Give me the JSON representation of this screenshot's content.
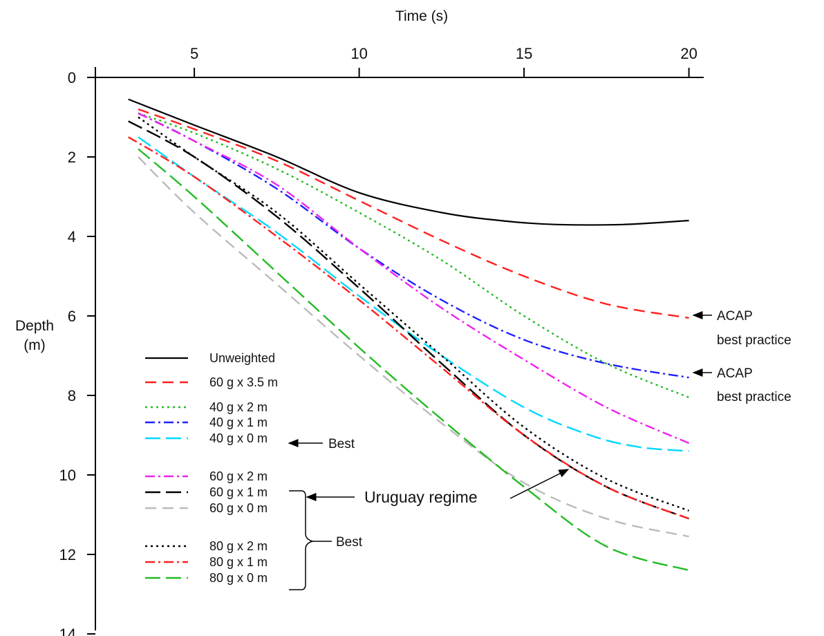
{
  "chart_data": {
    "type": "line",
    "title": "",
    "xlabel": "Time (s)",
    "ylabel_line1": "Depth",
    "ylabel_line2": "(m)",
    "xlim": [
      2,
      21
    ],
    "ylim": [
      0,
      14
    ],
    "y_inverted": true,
    "x_axis_position": "top",
    "xticks": [
      5,
      10,
      15,
      20
    ],
    "yticks": [
      0,
      2,
      4,
      6,
      8,
      10,
      12,
      14
    ],
    "grid": false,
    "legend_position": "lower-left",
    "series": [
      {
        "name": "Unweighted",
        "color": "#000000",
        "dash": "solid",
        "x": [
          3,
          5,
          7.5,
          10,
          12.5,
          14.5,
          16,
          18,
          20
        ],
        "y": [
          0.55,
          1.2,
          2.0,
          2.9,
          3.4,
          3.62,
          3.7,
          3.7,
          3.6
        ]
      },
      {
        "name": "60 g x 3.5 m",
        "color": "#ff2020",
        "dash": "dash",
        "x": [
          3.3,
          5,
          7.5,
          10,
          12.5,
          15,
          17.5,
          20
        ],
        "y": [
          0.8,
          1.3,
          2.1,
          3.1,
          4.1,
          5.0,
          5.7,
          6.05
        ]
      },
      {
        "name": "40 g x 2 m",
        "color": "#22bb22",
        "dash": "dot",
        "x": [
          3.3,
          5,
          7.5,
          10,
          12.5,
          15,
          17.5,
          20
        ],
        "y": [
          0.9,
          1.4,
          2.3,
          3.4,
          4.6,
          6.0,
          7.2,
          8.05
        ]
      },
      {
        "name": "40 g x 1 m",
        "color": "#1f1fff",
        "dash": "dashdot",
        "x": [
          3.3,
          5,
          7.5,
          10,
          12.5,
          15,
          17.5,
          20
        ],
        "y": [
          0.9,
          1.6,
          2.8,
          4.3,
          5.6,
          6.6,
          7.2,
          7.55
        ]
      },
      {
        "name": "40 g x 0 m",
        "color": "#00d8ff",
        "dash": "longdash",
        "x": [
          3.3,
          5,
          7.5,
          10,
          12.5,
          15,
          17,
          18.5,
          20
        ],
        "y": [
          1.5,
          2.5,
          3.9,
          5.5,
          7.0,
          8.3,
          9.0,
          9.3,
          9.4
        ]
      },
      {
        "name": "60 g x 2 m",
        "color": "#ee22ee",
        "dash": "dashdot",
        "x": [
          3.3,
          5,
          7.5,
          10,
          12.5,
          15,
          17.5,
          20
        ],
        "y": [
          0.9,
          1.6,
          2.7,
          4.3,
          5.8,
          7.1,
          8.3,
          9.2
        ]
      },
      {
        "name": "60 g x 1 m",
        "color": "#000000",
        "dash": "longdash",
        "x": [
          3,
          5,
          7.5,
          10,
          12.5,
          15,
          17.5,
          20
        ],
        "y": [
          1.1,
          2.0,
          3.5,
          5.3,
          7.2,
          9.0,
          10.3,
          11.1
        ]
      },
      {
        "name": "60 g x 0 m",
        "color": "#bbbbbb",
        "dash": "dash",
        "x": [
          3.3,
          5,
          7.5,
          10,
          12.5,
          15,
          17.5,
          20
        ],
        "y": [
          2.0,
          3.4,
          5.2,
          7.0,
          8.7,
          10.2,
          11.1,
          11.55
        ]
      },
      {
        "name": "80 g x 2 m",
        "color": "#000000",
        "dash": "dot",
        "x": [
          3.3,
          5,
          7.5,
          10,
          12.5,
          15,
          17.5,
          20
        ],
        "y": [
          1.0,
          2.0,
          3.4,
          5.2,
          7.0,
          8.8,
          10.1,
          10.9
        ]
      },
      {
        "name": "80 g x 1 m",
        "color": "#ff2020",
        "dash": "dashdot",
        "x": [
          3,
          5,
          7.5,
          10,
          12.5,
          15,
          17.5,
          20
        ],
        "y": [
          1.5,
          2.5,
          4.0,
          5.6,
          7.3,
          9.0,
          10.3,
          11.1
        ]
      },
      {
        "name": "80 g x 0 m",
        "color": "#22bb22",
        "dash": "longdash",
        "x": [
          3.3,
          5,
          7.5,
          10,
          12.5,
          15,
          17.5,
          20
        ],
        "y": [
          1.8,
          3.0,
          4.9,
          6.8,
          8.6,
          10.3,
          11.8,
          12.4
        ]
      }
    ],
    "annotations": {
      "acap1_line1": "ACAP",
      "acap1_line2": "best practice",
      "acap2_line1": "ACAP",
      "acap2_line2": "best practice",
      "best_40g0m": "Best",
      "uruguay": "Uruguay regime",
      "best_group": "Best"
    }
  }
}
